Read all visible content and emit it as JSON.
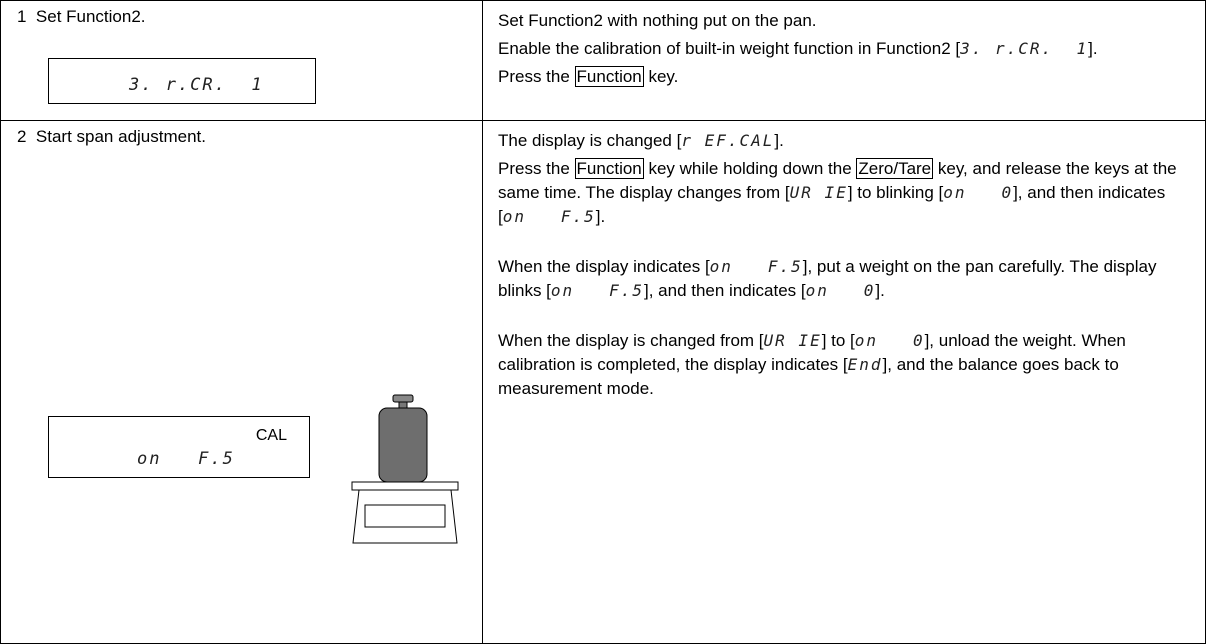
{
  "rows": [
    {
      "step": "1  Set Function2.",
      "display": {
        "text": "3. r.CR.  1"
      },
      "paragraphs": [
        [
          {
            "text": "Set Function2 with nothing put on the pan."
          }
        ],
        [
          {
            "text": "Enable the calibration of built-in weight function in Function2 ["
          },
          {
            "display": "3. r.CR.  1"
          },
          {
            "text": "]."
          }
        ],
        [
          {
            "text": "Press the "
          },
          {
            "key": "Function"
          },
          {
            "text": " key."
          }
        ]
      ]
    },
    {
      "step": "2  Start span adjustment.",
      "display": {
        "label": "CAL",
        "text": "on   F.5"
      },
      "paragraphs": [
        [
          {
            "text": "The display is changed ["
          },
          {
            "display": "r EF.CAL"
          },
          {
            "text": "]."
          }
        ],
        [
          {
            "text": "Press the "
          },
          {
            "key": "Function"
          },
          {
            "text": " key while holding down the "
          },
          {
            "key": "Zero/Tare"
          },
          {
            "text": " key, and release the keys at the same time. The display changes from ["
          },
          {
            "display": "UR IE"
          },
          {
            "text": "] to blinking ["
          },
          {
            "display": "on   0"
          },
          {
            "text": "], and then indicates ["
          },
          {
            "display": "on   F.5"
          },
          {
            "text": "]."
          }
        ],
        [
          {
            "text": "When the display indicates ["
          },
          {
            "display": "on   F.5"
          },
          {
            "text": "], put a weight on the pan carefully. The display blinks ["
          },
          {
            "display": "on   F.5"
          },
          {
            "text": "], and then indicates ["
          },
          {
            "display": "on   0"
          },
          {
            "text": "]."
          }
        ],
        [
          {
            "text": "When the display is changed from ["
          },
          {
            "display": "UR IE"
          },
          {
            "text": "] to ["
          },
          {
            "display": "on   0"
          },
          {
            "text": "], unload the weight. When calibration is completed, the display indicates ["
          },
          {
            "display": "End"
          },
          {
            "text": "], and the balance goes back to measurement mode."
          }
        ]
      ]
    }
  ]
}
